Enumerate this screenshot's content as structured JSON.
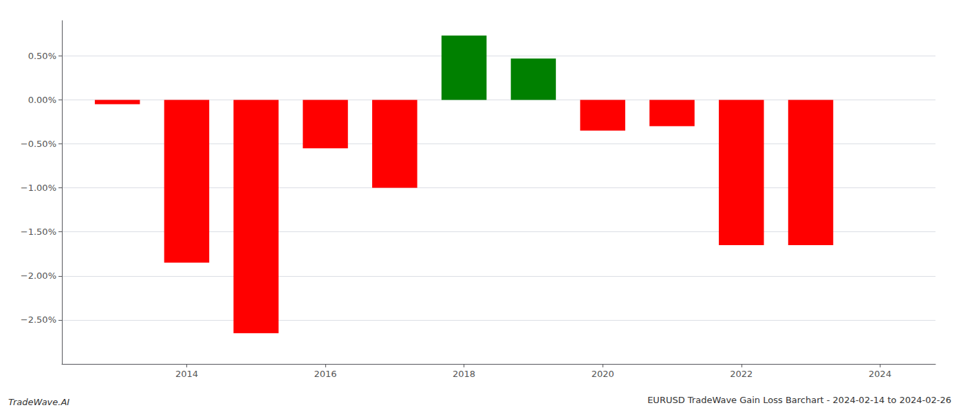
{
  "chart_data": {
    "type": "bar",
    "title": "EURUSD TradeWave Gain Loss Barchart - 2024-02-14 to 2024-02-26",
    "annotations": [
      "TradeWave.AI"
    ],
    "x": [
      2013,
      2014,
      2015,
      2016,
      2017,
      2018,
      2019,
      2020,
      2021,
      2022,
      2023
    ],
    "values": [
      -0.0005,
      -0.0185,
      -0.0265,
      -0.0055,
      -0.01,
      0.0073,
      0.0047,
      -0.0035,
      -0.003,
      -0.0165,
      -0.0165
    ],
    "colors": [
      "#ff0000",
      "#ff0000",
      "#ff0000",
      "#ff0000",
      "#ff0000",
      "#008000",
      "#008000",
      "#ff0000",
      "#ff0000",
      "#ff0000",
      "#ff0000"
    ],
    "xlim": [
      2012.2,
      2024.8
    ],
    "xticks": [
      2014,
      2016,
      2018,
      2020,
      2022,
      2024
    ],
    "ylim": [
      -0.03,
      0.009
    ],
    "yticks": [
      {
        "value": -0.025,
        "label": "−2.50%"
      },
      {
        "value": -0.02,
        "label": "−2.00%"
      },
      {
        "value": -0.015,
        "label": "−1.50%"
      },
      {
        "value": -0.01,
        "label": "−1.00%"
      },
      {
        "value": -0.005,
        "label": "−0.50%"
      },
      {
        "value": 0.0,
        "label": "0.00%"
      },
      {
        "value": 0.005,
        "label": "0.50%"
      }
    ],
    "grid": true
  }
}
